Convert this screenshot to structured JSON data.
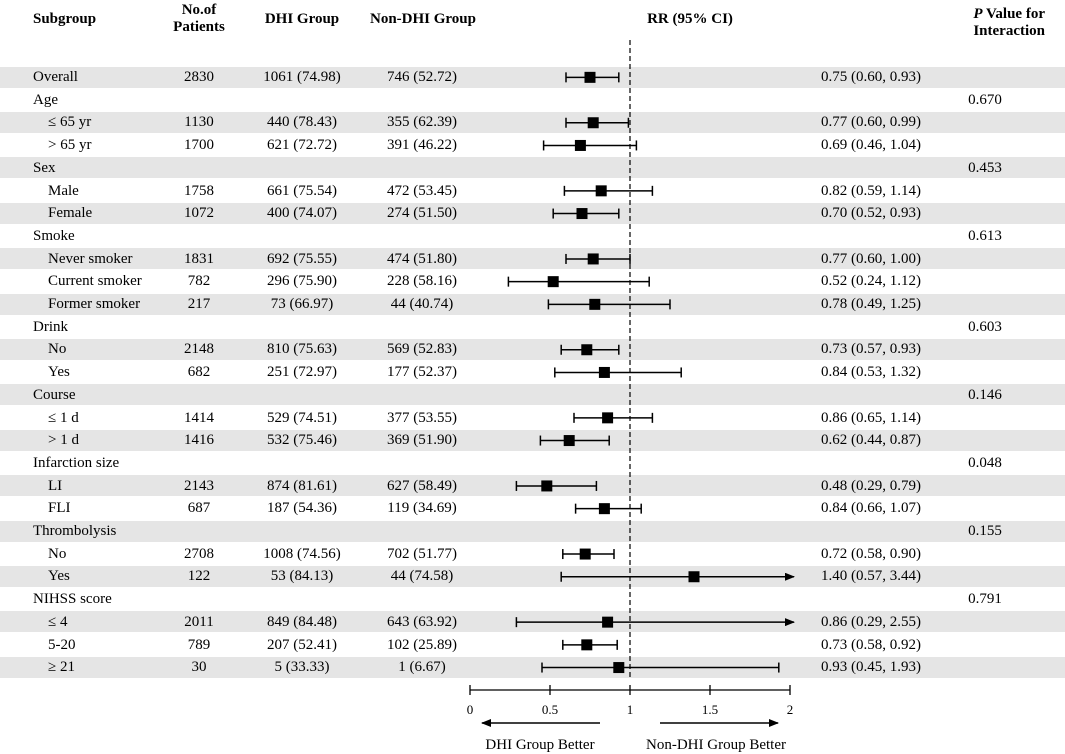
{
  "headers": {
    "subgroup": "Subgroup",
    "n_line1": "No.of",
    "n_line2": "Patients",
    "dhi": "DHI Group",
    "non_dhi": "Non-DHI Group",
    "rr": "RR (95% CI)",
    "p_italic": "P",
    "p_line1_rest": " Value for",
    "p_line2": "Interaction"
  },
  "rows": [
    {
      "label": "Overall",
      "indent": false,
      "n": "2830",
      "dhi": "1061 (74.98)",
      "non_dhi": "746 (52.72)",
      "rr_text": "0.75 (0.60, 0.93)",
      "p": ""
    },
    {
      "label": "Age",
      "indent": false,
      "n": "",
      "dhi": "",
      "non_dhi": "",
      "rr_text": "",
      "p": "0.670"
    },
    {
      "label": "≤ 65 yr",
      "indent": true,
      "n": "1130",
      "dhi": "440 (78.43)",
      "non_dhi": "355 (62.39)",
      "rr_text": "0.77 (0.60, 0.99)",
      "p": ""
    },
    {
      "label": "> 65 yr",
      "indent": true,
      "n": "1700",
      "dhi": "621 (72.72)",
      "non_dhi": "391 (46.22)",
      "rr_text": "0.69 (0.46, 1.04)",
      "p": ""
    },
    {
      "label": "Sex",
      "indent": false,
      "n": "",
      "dhi": "",
      "non_dhi": "",
      "rr_text": "",
      "p": "0.453"
    },
    {
      "label": "Male",
      "indent": true,
      "n": "1758",
      "dhi": "661 (75.54)",
      "non_dhi": "472 (53.45)",
      "rr_text": "0.82 (0.59, 1.14)",
      "p": ""
    },
    {
      "label": "Female",
      "indent": true,
      "n": "1072",
      "dhi": "400 (74.07)",
      "non_dhi": "274 (51.50)",
      "rr_text": "0.70 (0.52, 0.93)",
      "p": ""
    },
    {
      "label": "Smoke",
      "indent": false,
      "n": "",
      "dhi": "",
      "non_dhi": "",
      "rr_text": "",
      "p": "0.613"
    },
    {
      "label": "Never smoker",
      "indent": true,
      "n": "1831",
      "dhi": "692 (75.55)",
      "non_dhi": "474 (51.80)",
      "rr_text": "0.77 (0.60, 1.00)",
      "p": ""
    },
    {
      "label": "Current smoker",
      "indent": true,
      "n": "782",
      "dhi": "296 (75.90)",
      "non_dhi": "228 (58.16)",
      "rr_text": "0.52 (0.24, 1.12)",
      "p": ""
    },
    {
      "label": "Former smoker",
      "indent": true,
      "n": "217",
      "dhi": "73 (66.97)",
      "non_dhi": "44 (40.74)",
      "rr_text": "0.78 (0.49, 1.25)",
      "p": ""
    },
    {
      "label": "Drink",
      "indent": false,
      "n": "",
      "dhi": "",
      "non_dhi": "",
      "rr_text": "",
      "p": "0.603"
    },
    {
      "label": "No",
      "indent": true,
      "n": "2148",
      "dhi": "810 (75.63)",
      "non_dhi": "569 (52.83)",
      "rr_text": "0.73 (0.57, 0.93)",
      "p": ""
    },
    {
      "label": "Yes",
      "indent": true,
      "n": "682",
      "dhi": "251 (72.97)",
      "non_dhi": "177 (52.37)",
      "rr_text": "0.84 (0.53, 1.32)",
      "p": ""
    },
    {
      "label": "Course",
      "indent": false,
      "n": "",
      "dhi": "",
      "non_dhi": "",
      "rr_text": "",
      "p": "0.146"
    },
    {
      "label": "≤ 1 d",
      "indent": true,
      "n": "1414",
      "dhi": "529 (74.51)",
      "non_dhi": "377 (53.55)",
      "rr_text": "0.86 (0.65, 1.14)",
      "p": ""
    },
    {
      "label": "> 1 d",
      "indent": true,
      "n": "1416",
      "dhi": "532 (75.46)",
      "non_dhi": "369 (51.90)",
      "rr_text": "0.62 (0.44, 0.87)",
      "p": ""
    },
    {
      "label": "Infarction size",
      "indent": false,
      "n": "",
      "dhi": "",
      "non_dhi": "",
      "rr_text": "",
      "p": "0.048"
    },
    {
      "label": "LI",
      "indent": true,
      "n": "2143",
      "dhi": "874 (81.61)",
      "non_dhi": "627 (58.49)",
      "rr_text": "0.48 (0.29, 0.79)",
      "p": ""
    },
    {
      "label": "FLI",
      "indent": true,
      "n": "687",
      "dhi": "187 (54.36)",
      "non_dhi": "119 (34.69)",
      "rr_text": "0.84 (0.66, 1.07)",
      "p": ""
    },
    {
      "label": "Thrombolysis",
      "indent": false,
      "n": "",
      "dhi": "",
      "non_dhi": "",
      "rr_text": "",
      "p": "0.155"
    },
    {
      "label": "No",
      "indent": true,
      "n": "2708",
      "dhi": "1008 (74.56)",
      "non_dhi": "702 (51.77)",
      "rr_text": "0.72 (0.58, 0.90)",
      "p": ""
    },
    {
      "label": "Yes",
      "indent": true,
      "n": "122",
      "dhi": "53 (84.13)",
      "non_dhi": "44 (74.58)",
      "rr_text": "1.40 (0.57, 3.44)",
      "p": ""
    },
    {
      "label": "NIHSS score",
      "indent": false,
      "n": "",
      "dhi": "",
      "non_dhi": "",
      "rr_text": "",
      "p": "0.791"
    },
    {
      "label": "≤ 4",
      "indent": true,
      "n": "2011",
      "dhi": "849 (84.48)",
      "non_dhi": "643 (63.92)",
      "rr_text": "0.86 (0.29, 2.55)",
      "p": ""
    },
    {
      "label": "5-20",
      "indent": true,
      "n": "789",
      "dhi": "207 (52.41)",
      "non_dhi": "102 (25.89)",
      "rr_text": "0.73 (0.58, 0.92)",
      "p": ""
    },
    {
      "label": "≥ 21",
      "indent": true,
      "n": "30",
      "dhi": "5 (33.33)",
      "non_dhi": "1 (6.67)",
      "rr_text": "0.93 (0.45, 1.93)",
      "p": ""
    }
  ],
  "chart_data": {
    "type": "forest",
    "title": "RR (95% CI)",
    "xlim": [
      0,
      2
    ],
    "reference_line": 1,
    "ticks": [
      0,
      0.5,
      1,
      1.5,
      2
    ],
    "tick_labels": [
      "0",
      "0.5",
      "1",
      "1.5",
      "2"
    ],
    "left_label": "DHI Group Better",
    "right_label": "Non-DHI Group Better",
    "points": [
      {
        "row": 0,
        "label": "Overall",
        "rr": 0.75,
        "lo": 0.6,
        "hi": 0.93
      },
      {
        "row": 2,
        "label": "≤ 65 yr",
        "rr": 0.77,
        "lo": 0.6,
        "hi": 0.99
      },
      {
        "row": 3,
        "label": "> 65 yr",
        "rr": 0.69,
        "lo": 0.46,
        "hi": 1.04
      },
      {
        "row": 5,
        "label": "Male",
        "rr": 0.82,
        "lo": 0.59,
        "hi": 1.14
      },
      {
        "row": 6,
        "label": "Female",
        "rr": 0.7,
        "lo": 0.52,
        "hi": 0.93
      },
      {
        "row": 8,
        "label": "Never smoker",
        "rr": 0.77,
        "lo": 0.6,
        "hi": 1.0
      },
      {
        "row": 9,
        "label": "Current smoker",
        "rr": 0.52,
        "lo": 0.24,
        "hi": 1.12
      },
      {
        "row": 10,
        "label": "Former smoker",
        "rr": 0.78,
        "lo": 0.49,
        "hi": 1.25
      },
      {
        "row": 12,
        "label": "Drink No",
        "rr": 0.73,
        "lo": 0.57,
        "hi": 0.93
      },
      {
        "row": 13,
        "label": "Drink Yes",
        "rr": 0.84,
        "lo": 0.53,
        "hi": 1.32
      },
      {
        "row": 15,
        "label": "≤ 1 d",
        "rr": 0.86,
        "lo": 0.65,
        "hi": 1.14
      },
      {
        "row": 16,
        "label": "> 1 d",
        "rr": 0.62,
        "lo": 0.44,
        "hi": 0.87
      },
      {
        "row": 18,
        "label": "LI",
        "rr": 0.48,
        "lo": 0.29,
        "hi": 0.79
      },
      {
        "row": 19,
        "label": "FLI",
        "rr": 0.84,
        "lo": 0.66,
        "hi": 1.07
      },
      {
        "row": 21,
        "label": "Thrombolysis No",
        "rr": 0.72,
        "lo": 0.58,
        "hi": 0.9
      },
      {
        "row": 22,
        "label": "Thrombolysis Yes",
        "rr": 1.4,
        "lo": 0.57,
        "hi": 3.44
      },
      {
        "row": 24,
        "label": "≤ 4",
        "rr": 0.86,
        "lo": 0.29,
        "hi": 2.55
      },
      {
        "row": 25,
        "label": "5-20",
        "rr": 0.73,
        "lo": 0.58,
        "hi": 0.92
      },
      {
        "row": 26,
        "label": "≥ 21",
        "rr": 0.93,
        "lo": 0.45,
        "hi": 1.93
      }
    ]
  }
}
